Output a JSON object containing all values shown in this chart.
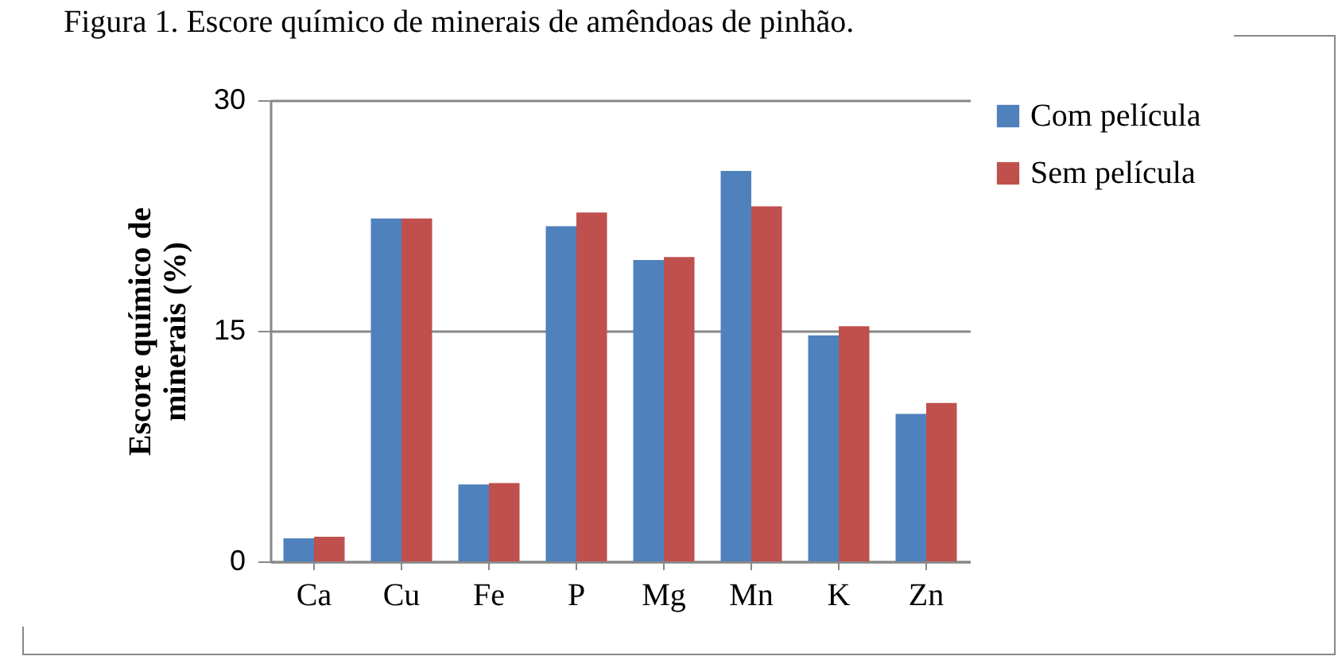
{
  "chart_data": {
    "type": "bar",
    "title": "Figura 1. Escore químico de minerais de amêndoas de pinhão.",
    "ylabel": "Escore químico de minerais (%)",
    "categories": [
      "Ca",
      "Cu",
      "Fe",
      "P",
      "Mg",
      "Mn",
      "K",
      "Zn"
    ],
    "series": [
      {
        "name": "Com película",
        "color": "#4f81bd",
        "values": [
          1.5,
          22.3,
          5.0,
          21.8,
          19.6,
          25.4,
          14.7,
          9.6
        ]
      },
      {
        "name": "Sem película",
        "color": "#c0504d",
        "values": [
          1.6,
          22.3,
          5.1,
          22.7,
          19.8,
          23.1,
          15.3,
          10.3
        ]
      }
    ],
    "ylim": [
      0,
      30
    ],
    "yticks": [
      0,
      15,
      30
    ],
    "grid": true,
    "legend": "right"
  }
}
